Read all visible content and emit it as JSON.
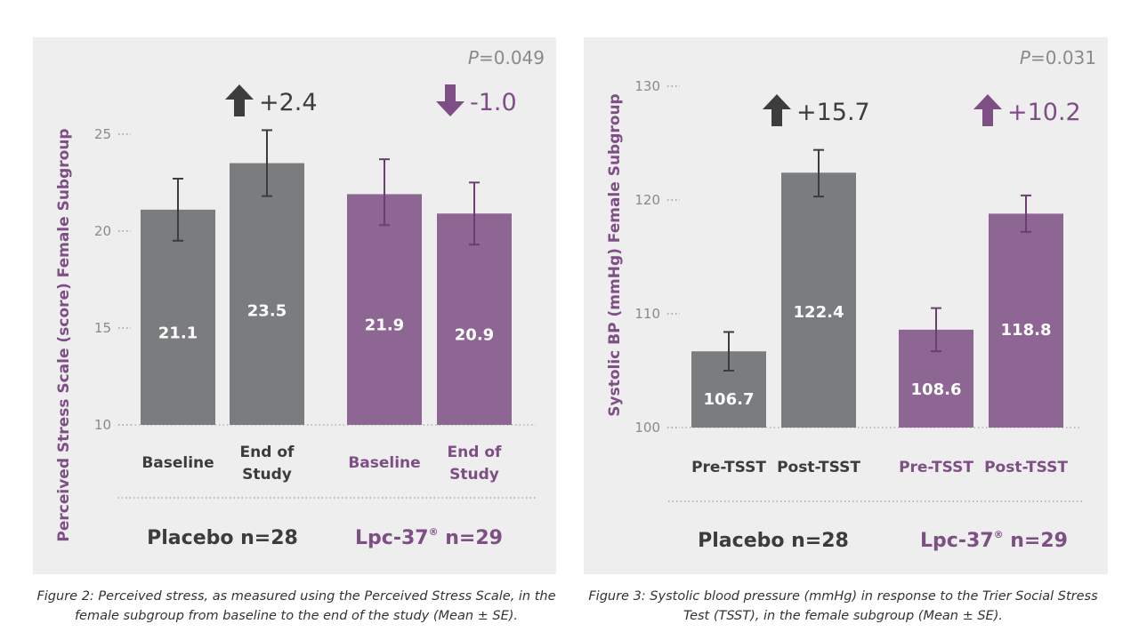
{
  "colors": {
    "placebo": "#7b7c7e",
    "lpc": "#8e6694",
    "placebo_text": "#3c3c3c",
    "lpc_text": "#7e4f85",
    "ylabel": "#7e4f85",
    "arrow_placebo": "#3d3d3d",
    "arrow_lpc": "#7e4f85"
  },
  "captions": [
    "Figure 2: Perceived stress, as measured using the Perceived Stress Scale, in the female subgroup from baseline to the end of the study (Mean ± SE).",
    "Figure 3: Systolic blood pressure (mmHg) in response to the Trier Social Stress Test (TSST), in the female subgroup (Mean ± SE)."
  ],
  "chart_data": [
    {
      "type": "bar",
      "title": "",
      "ylabel": "Perceived Stress Scale (score) Female Subgroup",
      "xlabel": "",
      "ylim": [
        10,
        26
      ],
      "yticks": [
        "10",
        "15",
        "20",
        "25"
      ],
      "pvalue_prefix": "P",
      "pvalue_rest": "=0.049",
      "categories": [
        "Baseline",
        "End of Study",
        "Baseline",
        "End of Study"
      ],
      "category_lines": [
        [
          "Baseline"
        ],
        [
          "End of",
          "Study"
        ],
        [
          "Baseline"
        ],
        [
          "End of",
          "Study"
        ]
      ],
      "values": [
        21.1,
        23.5,
        21.9,
        20.9
      ],
      "value_labels": [
        "21.1",
        "23.5",
        "21.9",
        "20.9"
      ],
      "error_low": [
        19.5,
        21.8,
        20.3,
        19.3
      ],
      "error_high": [
        22.7,
        25.2,
        23.7,
        22.5
      ],
      "series_of_bar": [
        "placebo",
        "placebo",
        "lpc",
        "lpc"
      ],
      "groups": [
        {
          "name": "Placebo",
          "label": "Placebo n=28",
          "label_main": "Placebo n=28",
          "label_sup": "",
          "label_tail": "",
          "series": "placebo"
        },
        {
          "name": "Lpc-37",
          "label": "Lpc-37® n=29",
          "label_main": "Lpc-37",
          "label_sup": "®",
          "label_tail": " n=29",
          "series": "lpc"
        }
      ],
      "changes": [
        {
          "group": "Placebo",
          "value": 2.4,
          "text": "+2.4",
          "direction": "up",
          "series": "placebo"
        },
        {
          "group": "Lpc-37",
          "value": -1.0,
          "text": "-1.0",
          "direction": "down",
          "series": "lpc"
        }
      ]
    },
    {
      "type": "bar",
      "title": "",
      "ylabel": "Systolic BP (mmHg) Female Subgroup",
      "xlabel": "",
      "ylim": [
        100,
        130
      ],
      "yticks": [
        "100",
        "110",
        "120",
        "130"
      ],
      "pvalue_prefix": "P",
      "pvalue_rest": "=0.031",
      "categories": [
        "Pre-TSST",
        "Post-TSST",
        "Pre-TSST",
        "Post-TSST"
      ],
      "category_lines": [
        [
          "Pre-TSST"
        ],
        [
          "Post-TSST"
        ],
        [
          "Pre-TSST"
        ],
        [
          "Post-TSST"
        ]
      ],
      "values": [
        106.7,
        122.4,
        108.6,
        118.8
      ],
      "value_labels": [
        "106.7",
        "122.4",
        "108.6",
        "118.8"
      ],
      "error_low": [
        105.0,
        120.3,
        106.7,
        117.2
      ],
      "error_high": [
        108.4,
        124.4,
        110.5,
        120.4
      ],
      "series_of_bar": [
        "placebo",
        "placebo",
        "lpc",
        "lpc"
      ],
      "groups": [
        {
          "name": "Placebo",
          "label": "Placebo n=28",
          "label_main": "Placebo n=28",
          "label_sup": "",
          "label_tail": "",
          "series": "placebo"
        },
        {
          "name": "Lpc-37",
          "label": "Lpc-37® n=29",
          "label_main": "Lpc-37",
          "label_sup": "®",
          "label_tail": " n=29",
          "series": "lpc"
        }
      ],
      "changes": [
        {
          "group": "Placebo",
          "value": 15.7,
          "text": "+15.7",
          "direction": "up",
          "series": "placebo"
        },
        {
          "group": "Lpc-37",
          "value": 10.2,
          "text": "+10.2",
          "direction": "up",
          "series": "lpc"
        }
      ]
    }
  ]
}
